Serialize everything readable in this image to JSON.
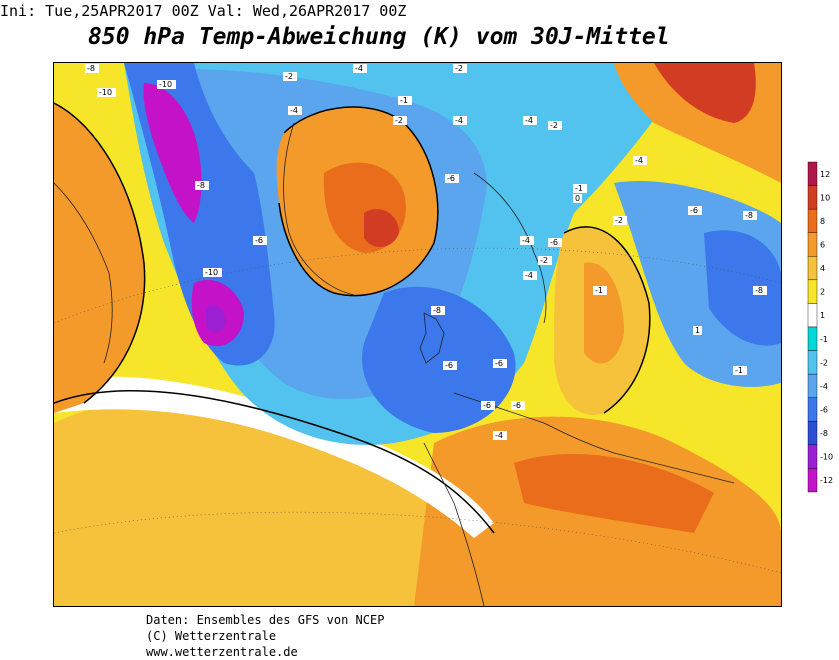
{
  "header": {
    "init_label": "Ini: Tue,25APR2017 00Z",
    "valid_label": "Val: Wed,26APR2017 00Z"
  },
  "title": "850 hPa Temp-Abweichung (K) vom 30J-Mittel",
  "legend": {
    "levels": [
      "12",
      "10",
      "8",
      "6",
      "4",
      "2",
      "1",
      "-1",
      "-2",
      "-4",
      "-6",
      "-8",
      "-10",
      "-12"
    ],
    "colors": [
      "#b0164a",
      "#d23c23",
      "#ea6d1c",
      "#f39a2a",
      "#f6c23b",
      "#f7e52a",
      "#ffffff",
      "#00d8d8",
      "#52c3ee",
      "#5aa5ee",
      "#3c78eb",
      "#2f4ed6",
      "#9b1fd3",
      "#c412c8"
    ]
  },
  "map": {
    "labels": [
      "-8",
      "-10",
      "-10",
      "-8",
      "-10",
      "-6",
      "-2",
      "-4",
      "-2",
      "-1",
      "-4",
      "-2",
      "-4",
      "-4",
      "-2",
      "-6",
      "-4",
      "-6",
      "-4",
      "-8",
      "-6",
      "-6",
      "-6",
      "-4",
      "-6",
      "-2",
      "-1",
      "0",
      "1",
      "-1",
      "-1",
      "-2",
      "-4",
      "-8",
      "-6",
      "-8"
    ]
  },
  "footer": {
    "line1": "Daten: Ensembles des GFS von NCEP",
    "line2": "(C) Wetterzentrale",
    "line3": "www.wetterzentrale.de"
  }
}
